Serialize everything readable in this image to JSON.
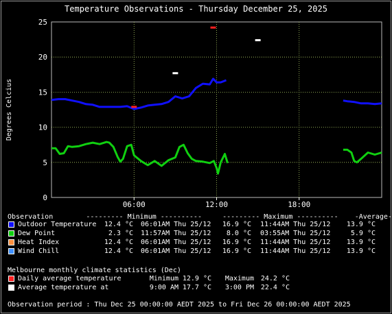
{
  "chart_data": {
    "type": "line",
    "title": "Temperature Observations - Thursday December 25, 2025",
    "ylabel": "Degrees Celcius",
    "xlabel": "",
    "ylim": [
      0,
      25
    ],
    "yticks": [
      "0",
      "5",
      "10",
      "15",
      "20",
      "25"
    ],
    "xlim_hours": [
      0,
      24
    ],
    "xticks": [
      {
        "hour": 6,
        "label": "06:00"
      },
      {
        "hour": 12,
        "label": "12:00"
      },
      {
        "hour": 18,
        "label": "18:00"
      }
    ],
    "grid": true,
    "series": [
      {
        "name": "Outdoor Temperature",
        "color": "#1010ff",
        "segments": [
          [
            [
              0,
              13.9
            ],
            [
              0.5,
              14.0
            ],
            [
              1.0,
              14.0
            ],
            [
              1.5,
              13.8
            ],
            [
              2.0,
              13.6
            ],
            [
              2.5,
              13.3
            ],
            [
              3.0,
              13.2
            ],
            [
              3.5,
              12.9
            ],
            [
              4.0,
              12.9
            ],
            [
              4.5,
              12.9
            ],
            [
              5.0,
              12.9
            ],
            [
              5.5,
              13.0
            ],
            [
              6.0,
              12.6
            ],
            [
              6.5,
              12.8
            ],
            [
              7.0,
              13.1
            ],
            [
              7.5,
              13.2
            ],
            [
              8.0,
              13.3
            ],
            [
              8.5,
              13.6
            ],
            [
              9.0,
              14.4
            ],
            [
              9.5,
              14.1
            ],
            [
              10.0,
              14.4
            ],
            [
              10.5,
              15.6
            ],
            [
              11.0,
              16.2
            ],
            [
              11.5,
              16.1
            ],
            [
              11.75,
              16.9
            ],
            [
              12.0,
              16.4
            ],
            [
              12.3,
              16.4
            ],
            [
              12.7,
              16.7
            ]
          ],
          [
            [
              21.2,
              13.8
            ],
            [
              21.5,
              13.7
            ],
            [
              22.0,
              13.6
            ],
            [
              22.5,
              13.4
            ],
            [
              23.0,
              13.4
            ],
            [
              23.5,
              13.3
            ],
            [
              24.0,
              13.4
            ]
          ]
        ]
      },
      {
        "name": "Dew Point",
        "color": "#10d010",
        "segments": [
          [
            [
              0,
              7.0
            ],
            [
              0.3,
              7.0
            ],
            [
              0.6,
              6.2
            ],
            [
              0.9,
              6.3
            ],
            [
              1.2,
              7.3
            ],
            [
              1.5,
              7.2
            ],
            [
              2.0,
              7.3
            ],
            [
              2.5,
              7.6
            ],
            [
              3.0,
              7.8
            ],
            [
              3.5,
              7.6
            ],
            [
              4.0,
              7.9
            ],
            [
              4.2,
              7.8
            ],
            [
              4.5,
              7.2
            ],
            [
              4.8,
              5.8
            ],
            [
              5.0,
              5.1
            ],
            [
              5.2,
              5.5
            ],
            [
              5.5,
              7.3
            ],
            [
              5.8,
              7.5
            ],
            [
              6.0,
              6.0
            ],
            [
              6.5,
              5.2
            ],
            [
              7.0,
              4.6
            ],
            [
              7.5,
              5.2
            ],
            [
              8.0,
              4.5
            ],
            [
              8.5,
              5.3
            ],
            [
              9.0,
              5.7
            ],
            [
              9.3,
              7.2
            ],
            [
              9.6,
              7.5
            ],
            [
              9.9,
              6.3
            ],
            [
              10.2,
              5.5
            ],
            [
              10.5,
              5.2
            ],
            [
              11.0,
              5.1
            ],
            [
              11.5,
              4.9
            ],
            [
              11.8,
              5.2
            ],
            [
              12.0,
              4.2
            ],
            [
              12.1,
              3.4
            ],
            [
              12.3,
              5.0
            ],
            [
              12.6,
              6.2
            ],
            [
              12.8,
              4.9
            ]
          ],
          [
            [
              21.2,
              6.8
            ],
            [
              21.5,
              6.8
            ],
            [
              21.8,
              6.4
            ],
            [
              22.0,
              5.2
            ],
            [
              22.2,
              5.0
            ],
            [
              22.5,
              5.5
            ],
            [
              23.0,
              6.4
            ],
            [
              23.5,
              6.1
            ],
            [
              24.0,
              6.4
            ]
          ]
        ]
      },
      {
        "name": "Heat Index",
        "color": "#ff9040",
        "segments": []
      },
      {
        "name": "Wind Chill",
        "color": "#4090ff",
        "segments": []
      },
      {
        "name": "Daily average temperature",
        "color": "#ff2020",
        "markers": [
          {
            "hour": 6.0,
            "value": 12.9
          },
          {
            "hour": 11.75,
            "value": 24.2
          }
        ]
      },
      {
        "name": "Average temperature at",
        "color": "#ffffff",
        "markers": [
          {
            "hour": 9.0,
            "value": 17.7
          },
          {
            "hour": 15.0,
            "value": 22.4
          }
        ]
      }
    ]
  },
  "legend": {
    "header": "Observation        --------- Minimum ----------     --------- Maximum ----------    -Average-",
    "rows": [
      {
        "label": "Outdoor Temperature",
        "min": "12.4 °C",
        "min_at": "06:01AM Thu 25/12",
        "max": "16.9 °C",
        "max_at": "11:44AM Thu 25/12",
        "avg": "13.9 °C",
        "color": "#1010ff"
      },
      {
        "label": "Dew Point",
        "min": "2.3 °C",
        "min_at": "11:57AM Thu 25/12",
        "max": "8.0 °C",
        "max_at": "03:55AM Thu 25/12",
        "avg": "5.9 °C",
        "color": "#10d010"
      },
      {
        "label": "Heat Index",
        "min": "12.4 °C",
        "min_at": "06:01AM Thu 25/12",
        "max": "16.9 °C",
        "max_at": "11:44AM Thu 25/12",
        "avg": "13.9 °C",
        "color": "#ff9040"
      },
      {
        "label": "Wind Chill",
        "min": "12.4 °C",
        "min_at": "06:01AM Thu 25/12",
        "max": "16.9 °C",
        "max_at": "11:44AM Thu 25/12",
        "avg": "13.9 °C",
        "color": "#4090ff"
      }
    ],
    "climate_header": "Melbourne monthly climate statistics (Dec)",
    "climate_rows": [
      {
        "label": "Daily average temperature",
        "min_label": "Minimum",
        "min": "12.9 °C",
        "max_label": "Maximum",
        "max": "24.2 °C",
        "color": "#ff2020"
      },
      {
        "label": "Average temperature at",
        "min_label": "9:00 AM",
        "min": "17.7 °C",
        "max_label": "3:00 PM",
        "max": "22.4 °C",
        "color": "#ffffff"
      }
    ],
    "period": "Observation period : Thu Dec 25 00:00:00 AEDT 2025 to Fri Dec 26 00:00:00 AEDT 2025"
  }
}
